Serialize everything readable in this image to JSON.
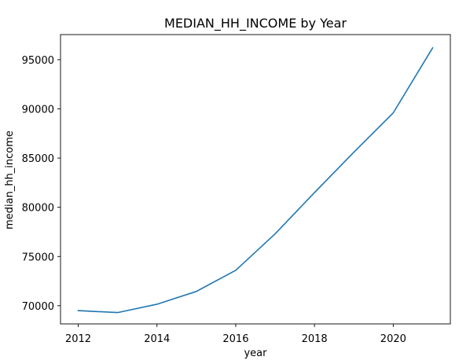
{
  "chart_data": {
    "type": "line",
    "title": "MEDIAN_HH_INCOME by Year",
    "xlabel": "year",
    "ylabel": "median_hh_income",
    "x": [
      2012,
      2013,
      2014,
      2015,
      2016,
      2017,
      2018,
      2019,
      2020,
      2021
    ],
    "series": [
      {
        "values": [
          69500,
          69300,
          70150,
          71450,
          73600,
          77300,
          81500,
          85600,
          89600,
          96200
        ],
        "color": "#1f77b4"
      }
    ],
    "xticks": [
      2012,
      2014,
      2016,
      2018,
      2020
    ],
    "xtick_labels": [
      "2012",
      "2014",
      "2016",
      "2018",
      "2020"
    ],
    "yticks": [
      70000,
      75000,
      80000,
      85000,
      90000,
      95000
    ],
    "ytick_labels": [
      "70000",
      "75000",
      "80000",
      "85000",
      "90000",
      "95000"
    ],
    "xlim": [
      2011.55,
      2021.45
    ],
    "ylim": [
      68150,
      97550
    ],
    "grid": false,
    "legend": "none"
  }
}
